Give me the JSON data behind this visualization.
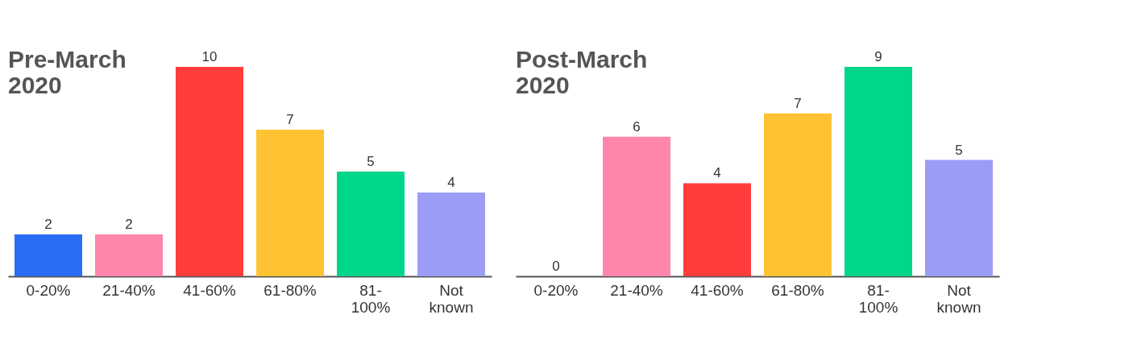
{
  "chart_data": [
    {
      "type": "bar",
      "title": "Pre-March 2020",
      "categories": [
        "0-20%",
        "21-40%",
        "41-60%",
        "61-80%",
        "81-100%",
        "Not known"
      ],
      "values": [
        2,
        2,
        10,
        7,
        5,
        4
      ],
      "colors": [
        "#2a6ef5",
        "#ff85aa",
        "#ff3d3d",
        "#ffc233",
        "#00d68a",
        "#9b9cf5"
      ],
      "data_labels": true
    },
    {
      "type": "bar",
      "title": "Post-March 2020",
      "categories": [
        "0-20%",
        "21-40%",
        "41-60%",
        "61-80%",
        "81-100%",
        "Not known"
      ],
      "values": [
        0,
        6,
        4,
        7,
        9,
        5
      ],
      "colors": [
        "#2a6ef5",
        "#ff85aa",
        "#ff3d3d",
        "#ffc233",
        "#00d68a",
        "#9b9cf5"
      ],
      "data_labels": true
    }
  ]
}
